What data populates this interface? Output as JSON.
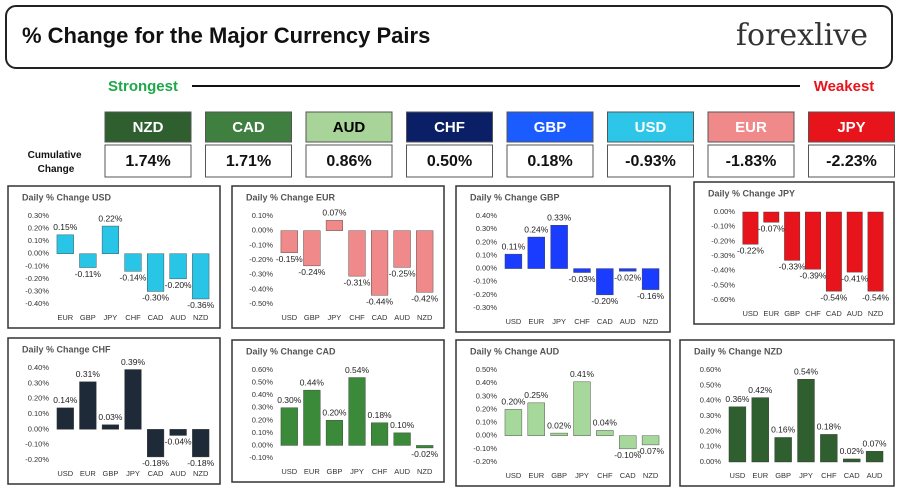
{
  "header": {
    "title": "% Change for the Major Currency Pairs",
    "logo": "forexlive"
  },
  "strength": {
    "strongest": "Strongest",
    "weakest": "Weakest",
    "row_label": "Cumulative Change",
    "items": [
      {
        "name": "NZD",
        "value": "1.74%",
        "color": "#2f5e2f",
        "text_color": "#ffffff"
      },
      {
        "name": "CAD",
        "value": "1.71%",
        "color": "#3f7f3f",
        "text_color": "#ffffff"
      },
      {
        "name": "AUD",
        "value": "0.86%",
        "color": "#a8d49a",
        "text_color": "#000000"
      },
      {
        "name": "CHF",
        "value": "0.50%",
        "color": "#0b1f66",
        "text_color": "#ffffff"
      },
      {
        "name": "GBP",
        "value": "0.18%",
        "color": "#1a5cff",
        "text_color": "#ffffff"
      },
      {
        "name": "USD",
        "value": "-0.93%",
        "color": "#2ec6e8",
        "text_color": "#ffffff"
      },
      {
        "name": "EUR",
        "value": "-1.83%",
        "color": "#f08a8a",
        "text_color": "#ffffff"
      },
      {
        "name": "JPY",
        "value": "-2.23%",
        "color": "#e8141b",
        "text_color": "#ffffff"
      }
    ]
  },
  "chart_data": [
    {
      "type": "bar",
      "title": "Daily % Change USD",
      "categories": [
        "EUR",
        "GBP",
        "JPY",
        "CHF",
        "CAD",
        "AUD",
        "NZD"
      ],
      "values": [
        0.15,
        -0.11,
        0.22,
        -0.14,
        -0.3,
        -0.2,
        -0.36
      ],
      "value_labels": [
        "0.15%",
        "-0.11%",
        "0.22%",
        "-0.14%",
        "-0.30%",
        "-0.20%",
        "-0.36%"
      ],
      "color": "#29c5e6",
      "ylim": [
        -0.4,
        0.3
      ],
      "yticks": [
        {
          "value": 0.3,
          "label": "0.30%"
        },
        {
          "value": 0.2,
          "label": "0.20%"
        },
        {
          "value": 0.1,
          "label": "0.10%"
        },
        {
          "value": 0,
          "label": "0.00%"
        },
        {
          "value": -0.1,
          "label": "-0.10%"
        },
        {
          "value": -0.2,
          "label": "-0.20%"
        },
        {
          "value": -0.3,
          "label": "-0.30%"
        },
        {
          "value": -0.4,
          "label": "-0.40%"
        }
      ]
    },
    {
      "type": "bar",
      "title": "Daily % Change EUR",
      "categories": [
        "USD",
        "GBP",
        "JPY",
        "CHF",
        "CAD",
        "AUD",
        "NZD"
      ],
      "values": [
        -0.15,
        -0.24,
        0.07,
        -0.31,
        -0.44,
        -0.25,
        -0.42
      ],
      "value_labels": [
        "-0.15%",
        "-0.24%",
        "0.07%",
        "-0.31%",
        "-0.44%",
        "-0.25%",
        "-0.42%"
      ],
      "color": "#f08a8a",
      "ylim": [
        -0.5,
        0.1
      ],
      "yticks": [
        {
          "value": 0.1,
          "label": "0.10%"
        },
        {
          "value": 0,
          "label": "0.00%"
        },
        {
          "value": -0.1,
          "label": "-0.10%"
        },
        {
          "value": -0.2,
          "label": "-0.20%"
        },
        {
          "value": -0.3,
          "label": "-0.30%"
        },
        {
          "value": -0.4,
          "label": "-0.40%"
        },
        {
          "value": -0.5,
          "label": "-0.50%"
        }
      ]
    },
    {
      "type": "bar",
      "title": "Daily % Change GBP",
      "categories": [
        "USD",
        "EUR",
        "JPY",
        "CHF",
        "CAD",
        "AUD",
        "NZD"
      ],
      "values": [
        0.11,
        0.24,
        0.33,
        -0.03,
        -0.2,
        -0.02,
        -0.16
      ],
      "value_labels": [
        "0.11%",
        "0.24%",
        "0.33%",
        "-0.03%",
        "-0.20%",
        "-0.02%",
        "-0.16%"
      ],
      "color": "#1a3cff",
      "ylim": [
        -0.3,
        0.4
      ],
      "yticks": [
        {
          "value": 0.4,
          "label": "0.40%"
        },
        {
          "value": 0.3,
          "label": "0.30%"
        },
        {
          "value": 0.2,
          "label": "0.20%"
        },
        {
          "value": 0.1,
          "label": "0.10%"
        },
        {
          "value": 0,
          "label": "0.00%"
        },
        {
          "value": -0.1,
          "label": "-0.10%"
        },
        {
          "value": -0.2,
          "label": "-0.20%"
        },
        {
          "value": -0.3,
          "label": "-0.30%"
        }
      ]
    },
    {
      "type": "bar",
      "title": "Daily % Change JPY",
      "categories": [
        "USD",
        "EUR",
        "GBP",
        "CHF",
        "CAD",
        "AUD",
        "NZD"
      ],
      "values": [
        -0.22,
        -0.07,
        -0.33,
        -0.39,
        -0.54,
        -0.41,
        -0.54
      ],
      "value_labels": [
        "-0.22%",
        "-0.07%",
        "-0.33%",
        "-0.39%",
        "-0.54%",
        "-0.41%",
        "-0.54%"
      ],
      "color": "#e8141b",
      "ylim": [
        -0.6,
        0
      ],
      "yticks": [
        {
          "value": 0,
          "label": "0.00%"
        },
        {
          "value": -0.1,
          "label": "-0.10%"
        },
        {
          "value": -0.2,
          "label": "-0.20%"
        },
        {
          "value": -0.3,
          "label": "-0.30%"
        },
        {
          "value": -0.4,
          "label": "-0.40%"
        },
        {
          "value": -0.5,
          "label": "-0.50%"
        },
        {
          "value": -0.6,
          "label": "-0.60%"
        }
      ]
    },
    {
      "type": "bar",
      "title": "Daily % Change CHF",
      "categories": [
        "USD",
        "EUR",
        "GBP",
        "JPY",
        "CAD",
        "AUD",
        "NZD"
      ],
      "values": [
        0.14,
        0.31,
        0.03,
        0.39,
        -0.18,
        -0.04,
        -0.18
      ],
      "value_labels": [
        "0.14%",
        "0.31%",
        "0.03%",
        "0.39%",
        "-0.18%",
        "-0.04%",
        "-0.18%"
      ],
      "color": "#1f2a38",
      "ylim": [
        -0.2,
        0.4
      ],
      "yticks": [
        {
          "value": 0.4,
          "label": "0.40%"
        },
        {
          "value": 0.3,
          "label": "0.30%"
        },
        {
          "value": 0.2,
          "label": "0.20%"
        },
        {
          "value": 0.1,
          "label": "0.10%"
        },
        {
          "value": 0,
          "label": "0.00%"
        },
        {
          "value": -0.1,
          "label": "-0.10%"
        },
        {
          "value": -0.2,
          "label": "-0.20%"
        }
      ]
    },
    {
      "type": "bar",
      "title": "Daily % Change CAD",
      "categories": [
        "USD",
        "EUR",
        "GBP",
        "JPY",
        "CHF",
        "AUD",
        "NZD"
      ],
      "values": [
        0.3,
        0.44,
        0.2,
        0.54,
        0.18,
        0.1,
        -0.02
      ],
      "value_labels": [
        "0.30%",
        "0.44%",
        "0.20%",
        "0.54%",
        "0.18%",
        "0.10%",
        "-0.02%"
      ],
      "color": "#3a8a3a",
      "ylim": [
        -0.1,
        0.6
      ],
      "yticks": [
        {
          "value": 0.6,
          "label": "0.60%"
        },
        {
          "value": 0.5,
          "label": "0.50%"
        },
        {
          "value": 0.4,
          "label": "0.40%"
        },
        {
          "value": 0.3,
          "label": "0.30%"
        },
        {
          "value": 0.2,
          "label": "0.20%"
        },
        {
          "value": 0.1,
          "label": "0.10%"
        },
        {
          "value": 0,
          "label": "0.00%"
        },
        {
          "value": -0.1,
          "label": "-0.10%"
        }
      ]
    },
    {
      "type": "bar",
      "title": "Daily % Change AUD",
      "categories": [
        "USD",
        "EUR",
        "GBP",
        "JPY",
        "CHF",
        "CAD",
        "NZD"
      ],
      "values": [
        0.2,
        0.25,
        0.02,
        0.41,
        0.04,
        -0.1,
        -0.07
      ],
      "value_labels": [
        "0.20%",
        "0.25%",
        "0.02%",
        "0.41%",
        "0.04%",
        "-0.10%",
        "-0.07%"
      ],
      "color": "#a5d89a",
      "ylim": [
        -0.2,
        0.5
      ],
      "yticks": [
        {
          "value": 0.5,
          "label": "0.50%"
        },
        {
          "value": 0.4,
          "label": "0.40%"
        },
        {
          "value": 0.3,
          "label": "0.30%"
        },
        {
          "value": 0.2,
          "label": "0.20%"
        },
        {
          "value": 0.1,
          "label": "0.10%"
        },
        {
          "value": 0,
          "label": "0.00%"
        },
        {
          "value": -0.1,
          "label": "-0.10%"
        },
        {
          "value": -0.2,
          "label": "-0.20%"
        }
      ]
    },
    {
      "type": "bar",
      "title": "Daily % Change NZD",
      "categories": [
        "USD",
        "EUR",
        "GBP",
        "JPY",
        "CHF",
        "CAD",
        "AUD"
      ],
      "values": [
        0.36,
        0.42,
        0.16,
        0.54,
        0.18,
        0.02,
        0.07
      ],
      "value_labels": [
        "0.36%",
        "0.42%",
        "0.16%",
        "0.54%",
        "0.18%",
        "0.02%",
        "0.07%"
      ],
      "color": "#2f5e2f",
      "ylim": [
        0,
        0.6
      ],
      "yticks": [
        {
          "value": 0.6,
          "label": "0.60%"
        },
        {
          "value": 0.5,
          "label": "0.50%"
        },
        {
          "value": 0.4,
          "label": "0.40%"
        },
        {
          "value": 0.3,
          "label": "0.30%"
        },
        {
          "value": 0.2,
          "label": "0.20%"
        },
        {
          "value": 0.1,
          "label": "0.10%"
        },
        {
          "value": 0,
          "label": "0.00%"
        }
      ]
    }
  ]
}
